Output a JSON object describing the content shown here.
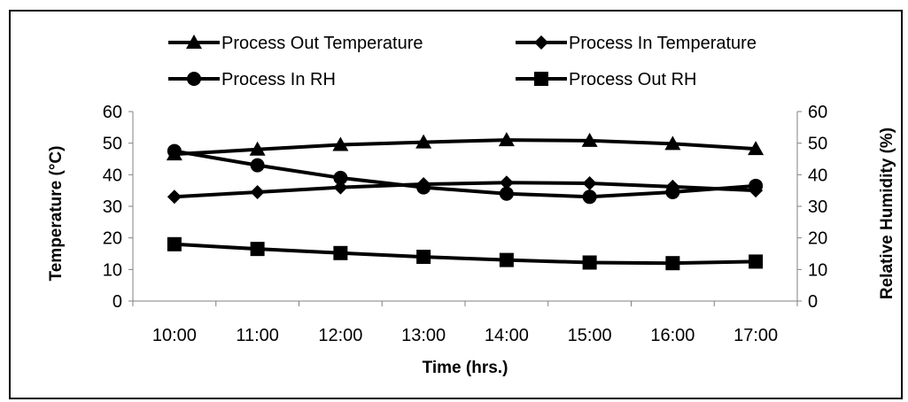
{
  "chart_data": {
    "type": "line",
    "categories": [
      "10:00",
      "11:00",
      "12:00",
      "13:00",
      "14:00",
      "15:00",
      "16:00",
      "17:00"
    ],
    "series": [
      {
        "name": "Process Out Temperature",
        "axis": "left",
        "marker": "triangle",
        "values": [
          46.5,
          48,
          49.5,
          50.3,
          51,
          50.8,
          49.8,
          48.2
        ]
      },
      {
        "name": "Process In Temperature",
        "axis": "left",
        "marker": "diamond",
        "values": [
          33,
          34.5,
          36,
          37,
          37.5,
          37.3,
          36.2,
          35
        ]
      },
      {
        "name": "Process In RH",
        "axis": "right",
        "marker": "circle",
        "values": [
          47.5,
          43,
          39,
          36,
          34,
          33,
          34.5,
          36.5
        ]
      },
      {
        "name": "Process Out RH",
        "axis": "right",
        "marker": "square",
        "values": [
          18,
          16.5,
          15.2,
          14,
          13,
          12.2,
          12,
          12.5
        ]
      }
    ],
    "xlabel": "Time (hrs.)",
    "ylabel": "Temperature (°C)",
    "y2label": "Relative Humidity (%)",
    "ylim": [
      0,
      60
    ],
    "y2lim": [
      0,
      60
    ],
    "yticks": [
      0,
      10,
      20,
      30,
      40,
      50,
      60
    ],
    "grid": false,
    "legend": "top",
    "line_color": "#000000"
  }
}
